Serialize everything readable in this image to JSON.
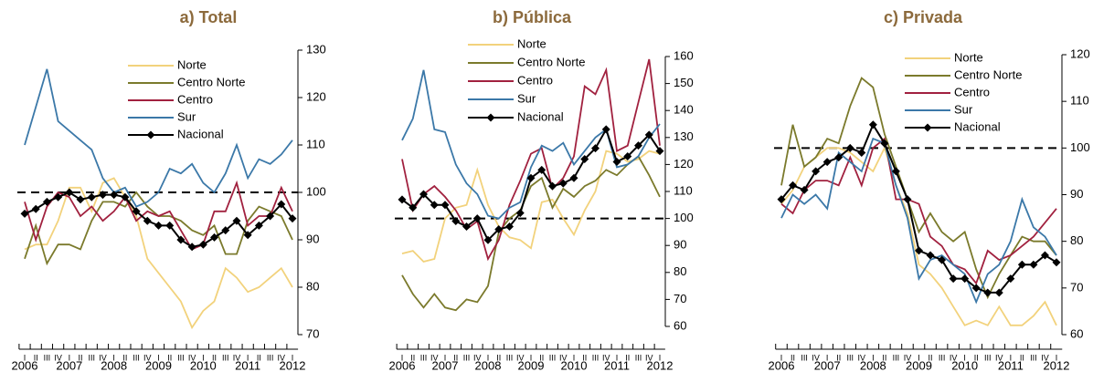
{
  "chart_data": [
    {
      "type": "line",
      "title": "a) Total",
      "categories": [
        "I",
        "II",
        "III",
        "IV",
        "I",
        "II",
        "III",
        "IV",
        "I",
        "II",
        "III",
        "IV",
        "I",
        "II",
        "III",
        "IV",
        "I",
        "II",
        "III",
        "IV",
        "I",
        "II",
        "III",
        "IV",
        "I"
      ],
      "years": [
        "2006",
        "2007",
        "2008",
        "2009",
        "2010",
        "2011",
        "2012"
      ],
      "ylim": [
        70,
        130
      ],
      "yticks": [
        70,
        80,
        90,
        100,
        110,
        120,
        130
      ],
      "reference_line": 100,
      "series": [
        {
          "name": "Norte",
          "color": "#f2d27c",
          "values": [
            88,
            89,
            89,
            94,
            101,
            101,
            96,
            102,
            103,
            99,
            95,
            86,
            83,
            80,
            77,
            71.5,
            75,
            77,
            84,
            82,
            79,
            80,
            82,
            84,
            80
          ]
        },
        {
          "name": "Centro Norte",
          "color": "#7b7a2c",
          "values": [
            86,
            93,
            85,
            89,
            89,
            88,
            94,
            98,
            98,
            97,
            100,
            97,
            95,
            95,
            94,
            92,
            91,
            93,
            87,
            87,
            94,
            97,
            96,
            95,
            90
          ]
        },
        {
          "name": "Centro",
          "color": "#a1213f",
          "values": [
            98,
            90,
            97,
            100,
            99,
            95,
            97,
            94,
            96,
            99,
            94,
            96,
            95,
            96,
            92,
            88,
            89,
            96,
            96,
            102,
            93,
            95,
            95,
            101,
            96
          ]
        },
        {
          "name": "Sur",
          "color": "#3b78a8",
          "values": [
            110,
            118,
            126,
            115,
            113,
            111,
            109,
            103,
            100,
            101,
            97,
            98,
            100,
            105,
            104,
            106,
            102,
            100,
            104,
            110,
            103,
            107,
            106,
            108,
            111
          ]
        },
        {
          "name": "Nacional",
          "color": "#000000",
          "markers": true,
          "values": [
            95.5,
            96.5,
            98,
            99,
            100,
            98.5,
            99,
            99.5,
            99.5,
            99,
            96,
            94,
            93,
            93,
            90,
            88.5,
            89,
            90.5,
            92,
            94,
            91,
            93,
            95,
            97.5,
            94.5
          ]
        }
      ]
    },
    {
      "type": "line",
      "title": "b) Pública",
      "categories": [
        "I",
        "II",
        "III",
        "IV",
        "I",
        "II",
        "III",
        "IV",
        "I",
        "II",
        "III",
        "IV",
        "I",
        "II",
        "III",
        "IV",
        "I",
        "II",
        "III",
        "IV",
        "I",
        "II",
        "III",
        "IV",
        "I"
      ],
      "years": [
        "2006",
        "2007",
        "2008",
        "2009",
        "2010",
        "2011",
        "2012"
      ],
      "ylim": [
        60,
        160
      ],
      "yticks": [
        60,
        70,
        80,
        90,
        100,
        110,
        120,
        130,
        140,
        150,
        160
      ],
      "reference_line": 100,
      "series": [
        {
          "name": "Norte",
          "color": "#f2d27c",
          "values": [
            87,
            88,
            84,
            85,
            100,
            104,
            105,
            118,
            105,
            97,
            93,
            92,
            89,
            106,
            107,
            100,
            94,
            103,
            110,
            125,
            124,
            121,
            122,
            125,
            124
          ]
        },
        {
          "name": "Centro Norte",
          "color": "#7b7a2c",
          "values": [
            79,
            72,
            67,
            72,
            67,
            66,
            70,
            69,
            75,
            95,
            100,
            103,
            112,
            115,
            104,
            111,
            108,
            112,
            114,
            118,
            116,
            120,
            123,
            116,
            108
          ]
        },
        {
          "name": "Centro",
          "color": "#a1213f",
          "values": [
            122,
            103,
            109,
            112,
            108,
            103,
            96,
            99,
            85,
            92,
            105,
            114,
            124,
            126,
            111,
            115,
            123,
            149,
            146,
            155,
            125,
            127,
            143,
            159,
            127
          ]
        },
        {
          "name": "Sur",
          "color": "#3b78a8",
          "values": [
            129,
            137,
            155,
            133,
            132,
            120,
            113,
            109,
            101,
            100,
            104,
            106,
            119,
            127,
            125,
            128,
            120,
            125,
            130,
            133,
            119,
            120,
            123,
            130,
            135
          ]
        },
        {
          "name": "Nacional",
          "color": "#000000",
          "markers": true,
          "values": [
            107,
            104,
            109,
            105,
            105,
            99,
            97,
            100,
            92,
            96,
            97,
            102,
            115,
            118,
            112,
            113,
            115,
            122,
            126,
            133,
            121,
            123,
            127,
            131,
            125
          ]
        }
      ]
    },
    {
      "type": "line",
      "title": "c) Privada",
      "categories": [
        "I",
        "II",
        "III",
        "IV",
        "I",
        "II",
        "III",
        "IV",
        "I",
        "II",
        "III",
        "IV",
        "I",
        "II",
        "III",
        "IV",
        "I",
        "II",
        "III",
        "IV",
        "I",
        "II",
        "III",
        "IV",
        "I"
      ],
      "years": [
        "2006",
        "2007",
        "2008",
        "2009",
        "2010",
        "2011",
        "2012"
      ],
      "ylim": [
        60,
        120
      ],
      "yticks": [
        60,
        70,
        80,
        90,
        100,
        110,
        120
      ],
      "reference_line": 100,
      "series": [
        {
          "name": "Norte",
          "color": "#f2d27c",
          "values": [
            88,
            91,
            96,
            98,
            100,
            100,
            99,
            97,
            95,
            100,
            92,
            86,
            75,
            73,
            70,
            66,
            62,
            63,
            62,
            66,
            62,
            62,
            64,
            67,
            62
          ]
        },
        {
          "name": "Centro Norte",
          "color": "#7b7a2c",
          "values": [
            92,
            105,
            96,
            98,
            102,
            101,
            109,
            115,
            113,
            103,
            96,
            89,
            82,
            86,
            82,
            80,
            82,
            74,
            68,
            73,
            77,
            81,
            80,
            80,
            77
          ]
        },
        {
          "name": "Centro",
          "color": "#a1213f",
          "values": [
            88,
            86,
            91,
            93,
            93,
            92,
            98,
            92,
            100,
            102,
            89,
            89,
            88,
            81,
            79,
            75,
            74,
            71,
            78,
            76,
            77,
            79,
            81,
            84,
            87
          ]
        },
        {
          "name": "Sur",
          "color": "#3b78a8",
          "values": [
            85,
            90,
            88,
            90,
            87,
            99,
            97,
            95,
            102,
            101,
            92,
            85,
            72,
            76,
            77,
            75,
            73,
            67,
            73,
            75,
            80,
            89,
            83,
            81,
            77
          ]
        },
        {
          "name": "Nacional",
          "color": "#000000",
          "markers": true,
          "values": [
            89,
            92,
            91,
            95,
            97,
            98,
            100,
            99,
            105,
            101,
            95,
            89,
            78,
            77,
            76,
            72,
            72,
            70,
            69,
            69,
            72,
            75,
            75,
            77,
            75.5
          ]
        }
      ]
    }
  ]
}
